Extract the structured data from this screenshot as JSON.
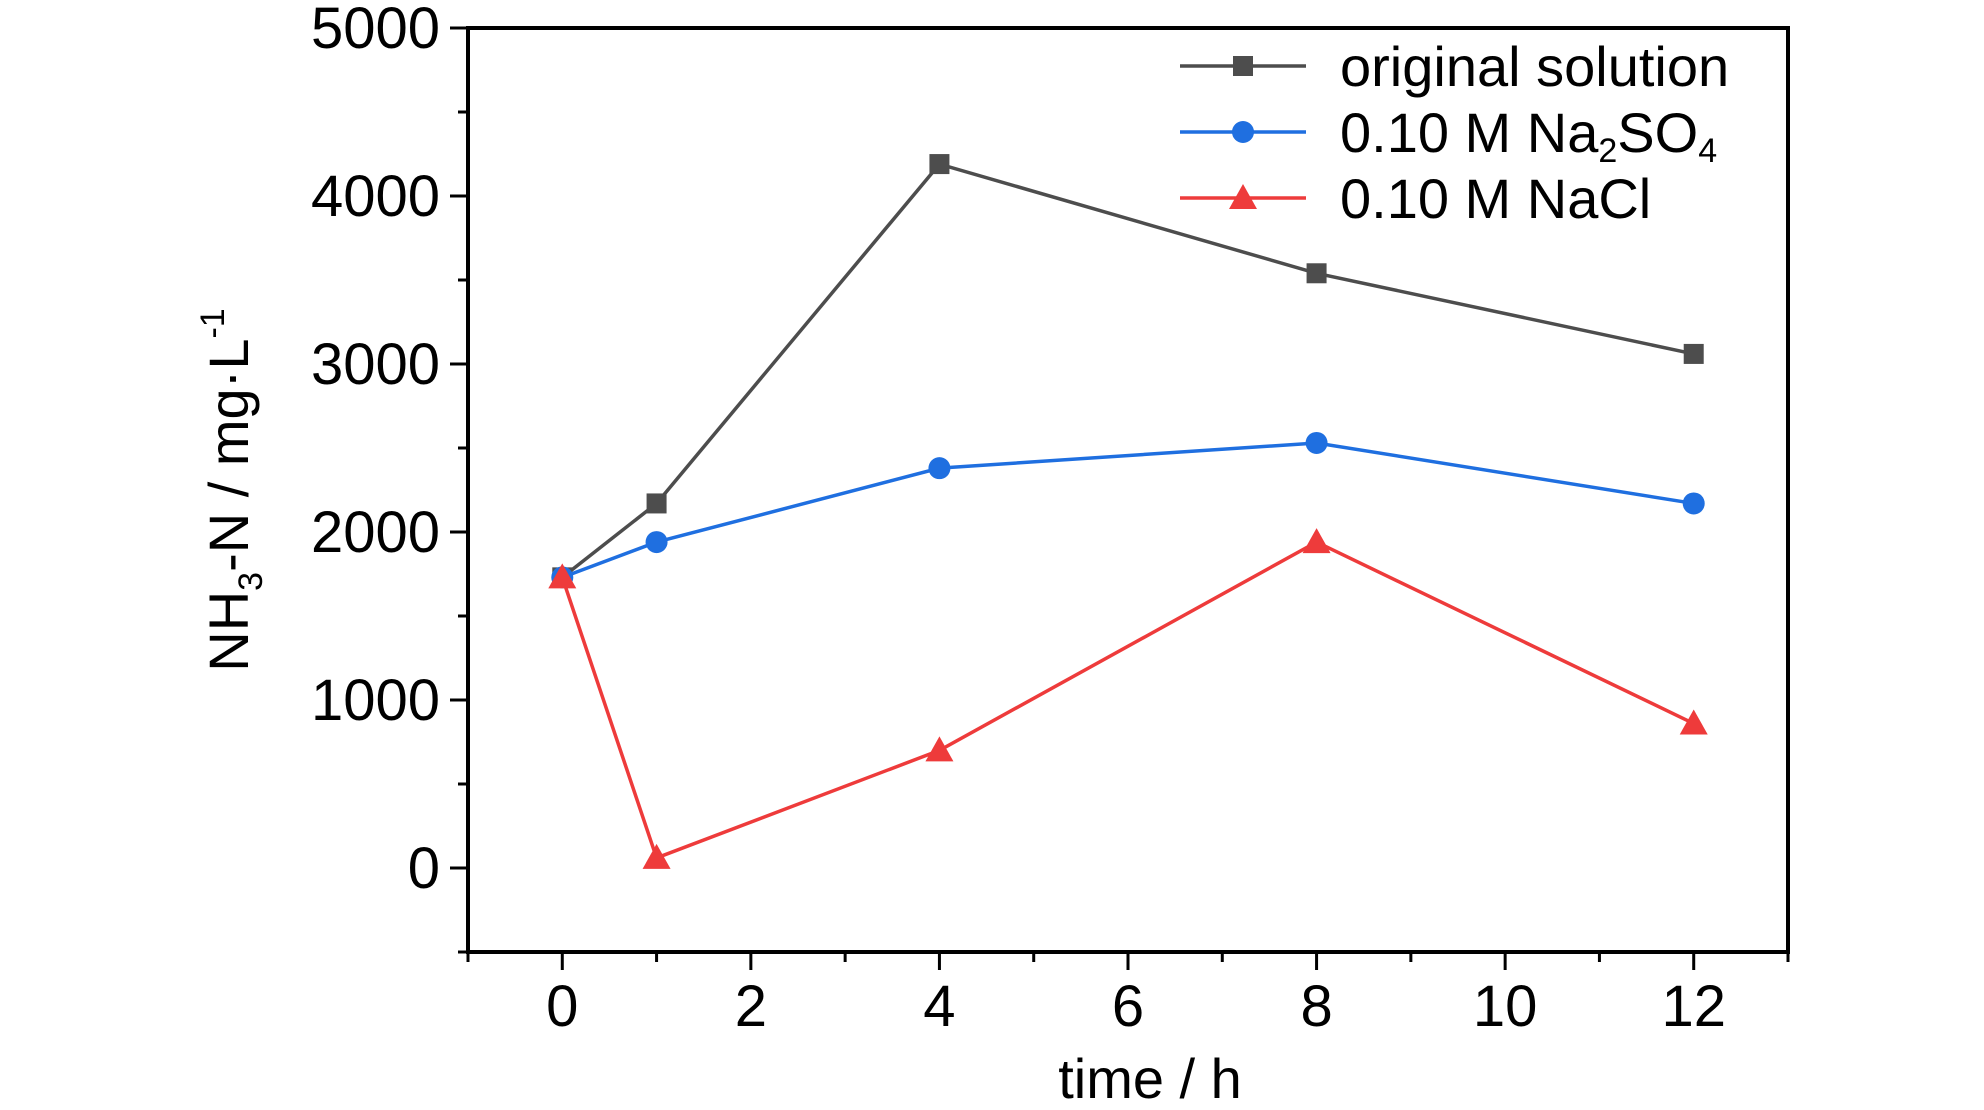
{
  "chart_data": {
    "type": "line",
    "title": "",
    "xlabel": "time / h",
    "ylabel": {
      "prefix": "NH",
      "sub": "3",
      "middle": "-N / mg·L",
      "sup": "-1"
    },
    "xlim": [
      -1,
      13
    ],
    "ylim": [
      -500,
      5000
    ],
    "xticks": [
      0,
      2,
      4,
      6,
      8,
      10,
      12
    ],
    "yticks": [
      0,
      1000,
      2000,
      3000,
      4000,
      5000
    ],
    "grid": false,
    "legend_position": "top-right",
    "x": [
      0,
      1,
      4,
      8,
      12
    ],
    "series": [
      {
        "name": "original solution",
        "name_parts": [
          {
            "t": "original solution"
          }
        ],
        "marker": "square",
        "color": "#4d4d4d",
        "values": [
          1730,
          2170,
          4190,
          3540,
          3060
        ]
      },
      {
        "name": "0.10 M Na2SO4",
        "name_parts": [
          {
            "t": "0.10 M Na"
          },
          {
            "t": "2",
            "sub": true
          },
          {
            "t": "SO"
          },
          {
            "t": "4",
            "sub": true
          }
        ],
        "marker": "circle",
        "color": "#1f6fe0",
        "values": [
          1730,
          1940,
          2380,
          2530,
          2170
        ]
      },
      {
        "name": "0.10 M NaCl",
        "name_parts": [
          {
            "t": "0.10 M NaCl"
          }
        ],
        "marker": "triangle",
        "color": "#ee3b3b",
        "values": [
          1730,
          60,
          700,
          1940,
          860
        ]
      }
    ]
  }
}
